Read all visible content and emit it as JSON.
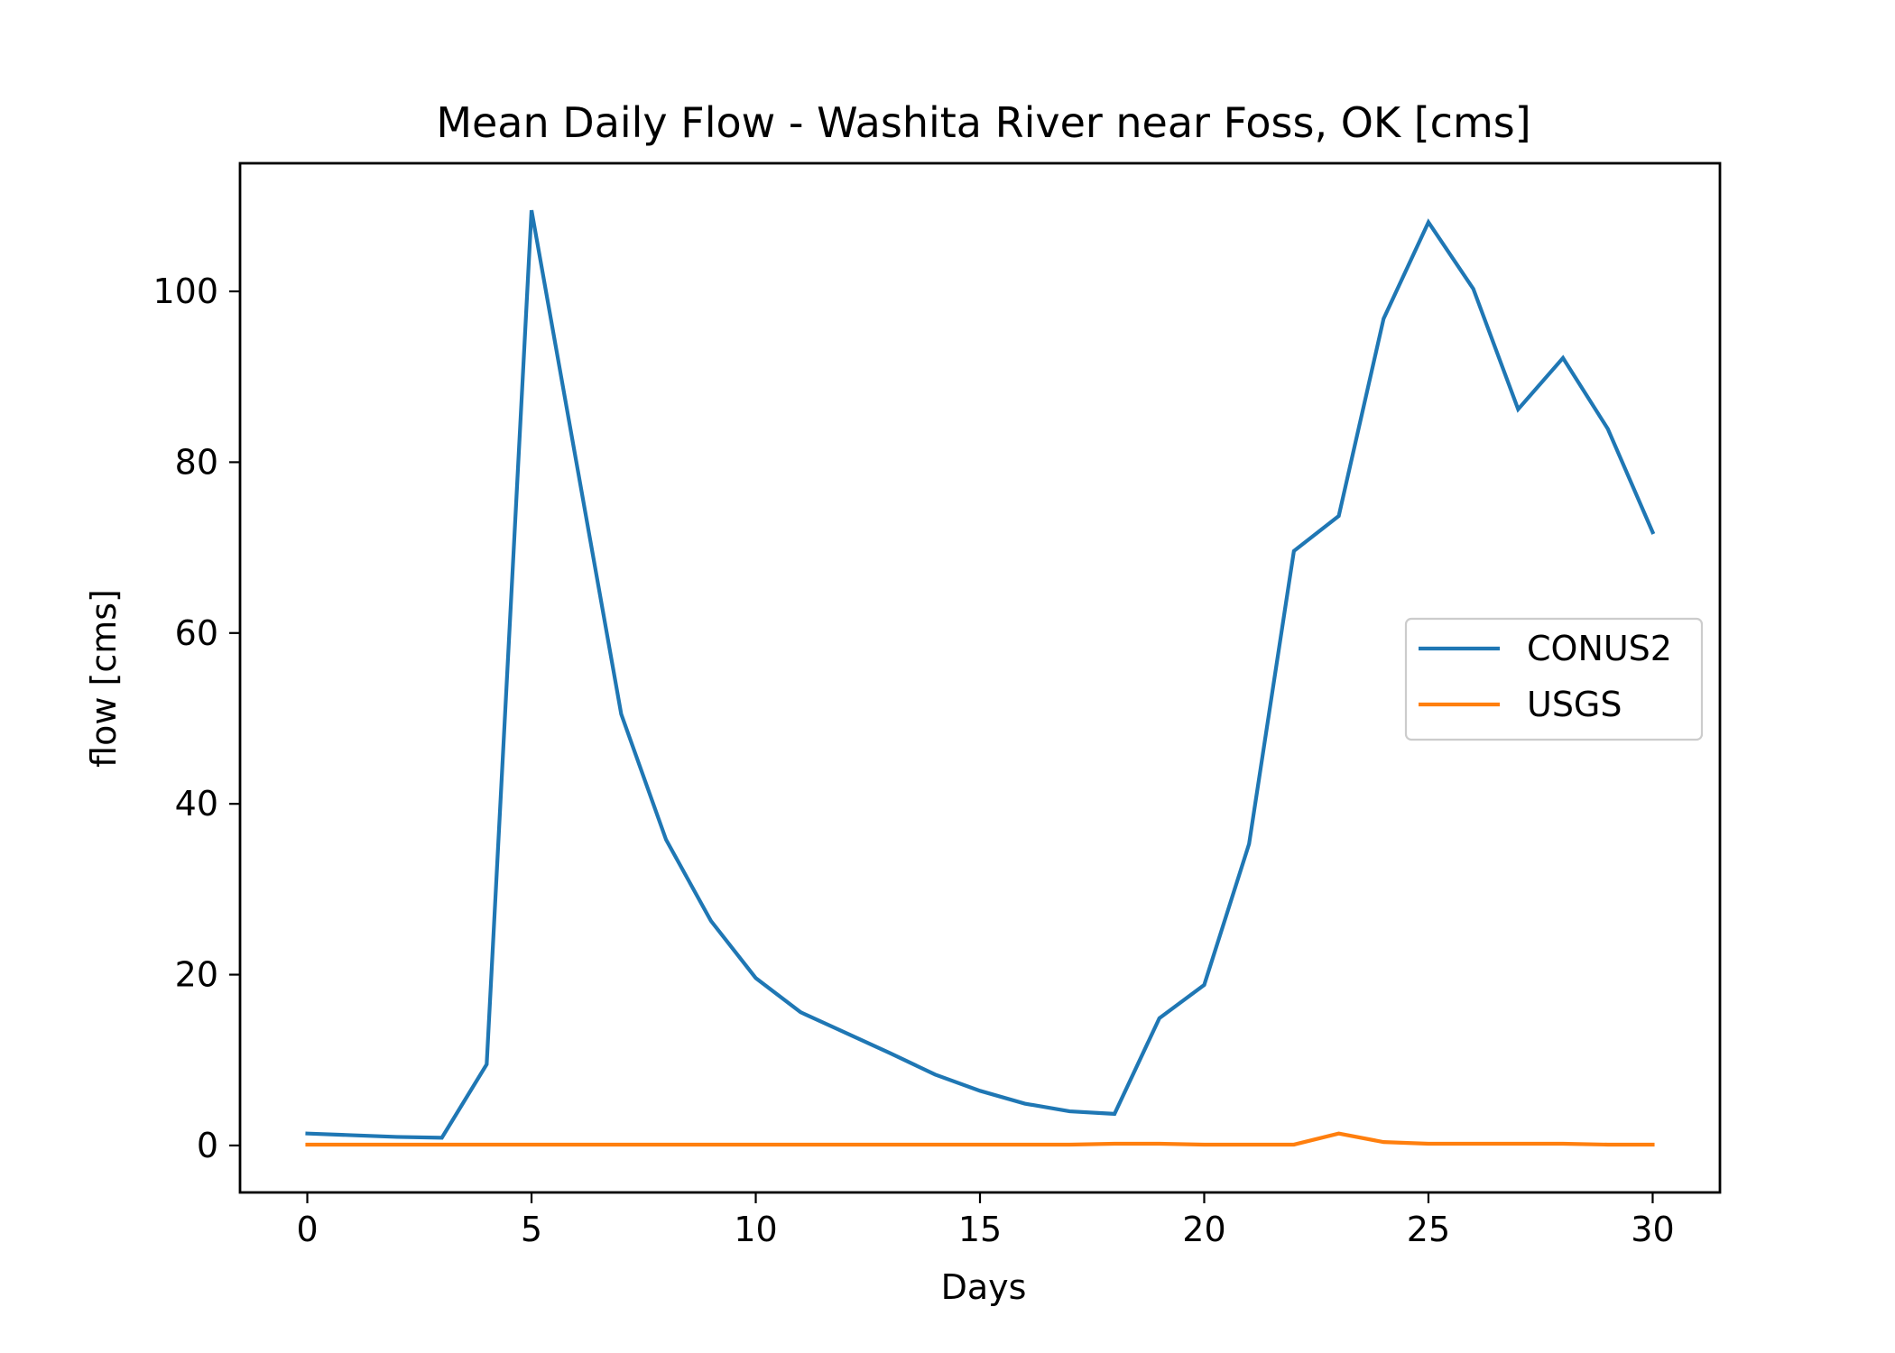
{
  "chart_data": {
    "type": "line",
    "title": "Mean Daily Flow - Washita River near Foss, OK [cms]",
    "xlabel": "Days",
    "ylabel": "flow [cms]",
    "xlim": [
      -1.5,
      31.5
    ],
    "ylim": [
      -5.5,
      115
    ],
    "xticks": [
      0,
      5,
      10,
      15,
      20,
      25,
      30
    ],
    "yticks": [
      0,
      20,
      40,
      60,
      80,
      100
    ],
    "grid": false,
    "legend_position": "center-right",
    "x": [
      0,
      1,
      2,
      3,
      4,
      5,
      6,
      7,
      8,
      9,
      10,
      11,
      12,
      13,
      14,
      15,
      16,
      17,
      18,
      19,
      20,
      21,
      22,
      23,
      24,
      25,
      26,
      27,
      28,
      29,
      30
    ],
    "series": [
      {
        "name": "CONUS2",
        "color": "#1f77b4",
        "values": [
          1.4,
          1.2,
          1.0,
          0.9,
          9.5,
          109.5,
          80.0,
          50.5,
          35.8,
          26.3,
          19.6,
          15.6,
          13.2,
          10.8,
          8.3,
          6.4,
          4.9,
          4.0,
          3.7,
          14.9,
          18.8,
          35.3,
          69.6,
          73.7,
          96.8,
          108.1,
          100.3,
          86.2,
          92.2,
          83.9,
          71.8
        ]
      },
      {
        "name": "USGS",
        "color": "#ff7f0e",
        "values": [
          0.1,
          0.1,
          0.1,
          0.1,
          0.1,
          0.1,
          0.1,
          0.1,
          0.1,
          0.1,
          0.1,
          0.1,
          0.1,
          0.1,
          0.1,
          0.1,
          0.1,
          0.1,
          0.2,
          0.2,
          0.1,
          0.1,
          0.1,
          1.4,
          0.4,
          0.2,
          0.2,
          0.2,
          0.2,
          0.1,
          0.1
        ]
      }
    ]
  }
}
